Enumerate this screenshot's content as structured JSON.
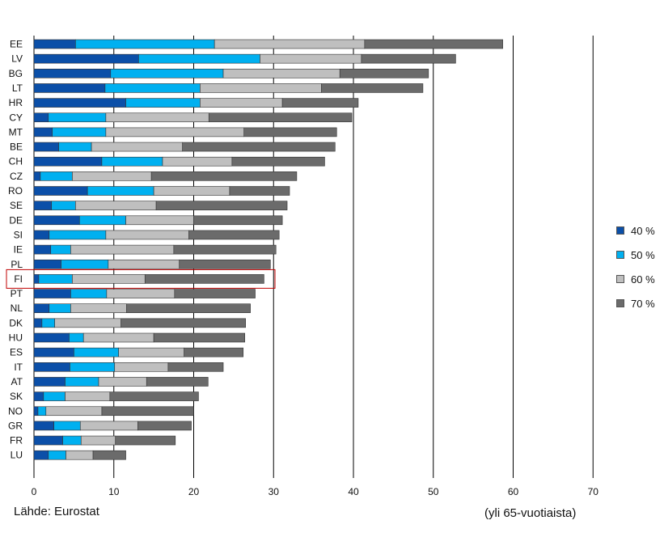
{
  "chart_data": {
    "type": "bar",
    "orientation": "horizontal",
    "stacked": true,
    "categories": [
      "EE",
      "LV",
      "BG",
      "LT",
      "HR",
      "CY",
      "MT",
      "BE",
      "CH",
      "CZ",
      "RO",
      "SE",
      "DE",
      "SI",
      "IE",
      "PL",
      "FI",
      "PT",
      "NL",
      "DK",
      "HU",
      "ES",
      "IT",
      "AT",
      "SK",
      "NO",
      "GR",
      "FR",
      "LU"
    ],
    "highlighted_category": "FI",
    "series": [
      {
        "name": "40 %",
        "color": "#0b4fa8",
        "values": [
          5.2,
          13.1,
          9.6,
          8.9,
          11.5,
          1.8,
          2.3,
          3.1,
          8.5,
          0.8,
          6.7,
          2.2,
          5.7,
          1.9,
          2.1,
          3.4,
          0.6,
          4.6,
          1.9,
          1.0,
          4.4,
          5.0,
          4.5,
          3.9,
          1.2,
          0.5,
          2.5,
          3.6,
          1.8
        ]
      },
      {
        "name": "50 %",
        "color": "#00b0f0",
        "values": [
          17.4,
          15.2,
          14.1,
          11.9,
          9.3,
          7.2,
          6.7,
          4.1,
          7.6,
          4.0,
          8.3,
          3.0,
          5.8,
          7.1,
          2.5,
          5.9,
          4.2,
          4.5,
          2.7,
          1.6,
          1.8,
          5.6,
          5.6,
          4.2,
          2.7,
          1.0,
          3.3,
          2.3,
          2.2
        ]
      },
      {
        "name": "60 %",
        "color": "#bfbfbf",
        "values": [
          18.8,
          12.7,
          14.6,
          15.2,
          10.3,
          12.9,
          17.3,
          11.4,
          8.7,
          9.9,
          9.5,
          10.1,
          8.5,
          10.4,
          12.9,
          8.9,
          9.1,
          8.5,
          7.0,
          8.3,
          8.8,
          8.2,
          6.7,
          6.0,
          5.6,
          7.0,
          7.2,
          4.3,
          3.4
        ]
      },
      {
        "name": "70 %",
        "color": "#6b6b6b",
        "values": [
          17.3,
          11.8,
          11.1,
          12.7,
          9.5,
          17.9,
          11.6,
          19.1,
          11.6,
          18.2,
          7.5,
          16.4,
          11.1,
          11.3,
          12.8,
          11.4,
          14.9,
          10.1,
          15.5,
          15.6,
          11.4,
          7.4,
          6.9,
          7.7,
          11.1,
          11.5,
          6.7,
          7.5,
          4.1
        ]
      }
    ],
    "xlim": [
      0,
      70
    ],
    "xticks": [
      0,
      10,
      20,
      30,
      40,
      50,
      60,
      70
    ],
    "grid": "vertical",
    "legend_position": "right",
    "xlabel": "(yli 65-vuotiaista)",
    "source": "Lähde: Eurostat"
  }
}
